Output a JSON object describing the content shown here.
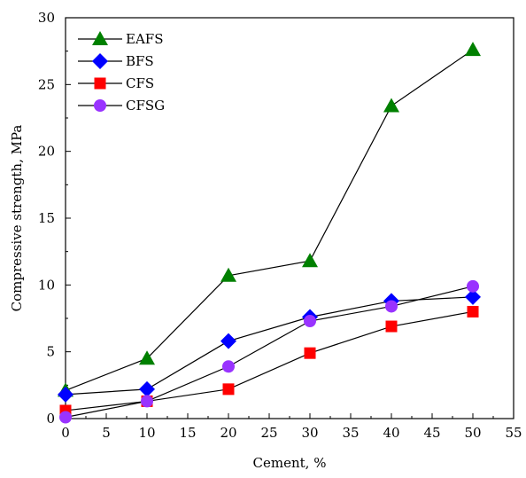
{
  "chart_data": {
    "type": "line",
    "xlabel": "Cement, %",
    "ylabel": "Compressive strength, MPa",
    "xlim": [
      0,
      55
    ],
    "ylim": [
      0,
      30
    ],
    "xticks": [
      "0",
      "5",
      "10",
      "15",
      "20",
      "25",
      "30",
      "35",
      "40",
      "45",
      "50",
      "55"
    ],
    "yticks": [
      "0",
      "5",
      "10",
      "15",
      "20",
      "25",
      "30"
    ],
    "grid": false,
    "legend_position": "top-left",
    "series": [
      {
        "name": "EAFS",
        "marker": "triangle",
        "color": "#008000",
        "x": [
          0,
          10,
          20,
          30,
          40,
          50
        ],
        "y": [
          2.1,
          4.5,
          10.7,
          11.8,
          23.4,
          27.6
        ]
      },
      {
        "name": "BFS",
        "marker": "diamond",
        "color": "#0000ff",
        "x": [
          0,
          10,
          20,
          30,
          40,
          50
        ],
        "y": [
          1.8,
          2.2,
          5.8,
          7.6,
          8.8,
          9.1
        ]
      },
      {
        "name": "CFS",
        "marker": "square",
        "color": "#ff0000",
        "x": [
          0,
          10,
          20,
          30,
          40,
          50
        ],
        "y": [
          0.6,
          1.3,
          2.2,
          4.9,
          6.9,
          8.0
        ]
      },
      {
        "name": "CFSG",
        "marker": "circle",
        "color": "#9933ff",
        "x": [
          0,
          10,
          20,
          30,
          40,
          50
        ],
        "y": [
          0.1,
          1.3,
          3.9,
          7.3,
          8.4,
          9.9
        ]
      }
    ]
  }
}
